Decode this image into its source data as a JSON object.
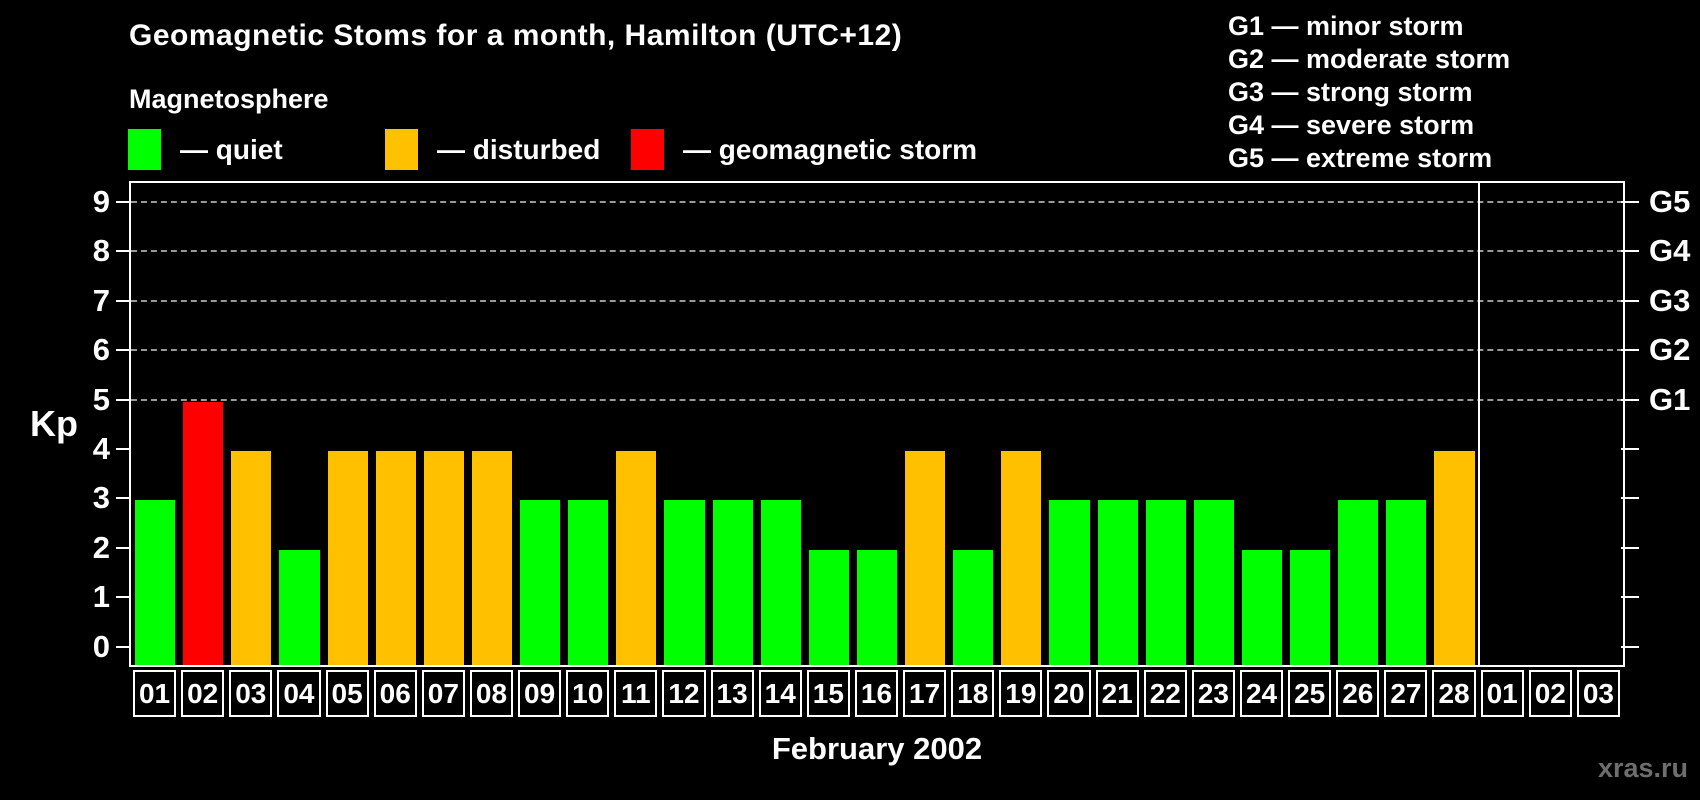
{
  "title": "Geomagnetic Stoms for a month, Hamilton (UTC+12)",
  "subtitle": "Magnetosphere",
  "legend": {
    "items": [
      {
        "type": "quiet",
        "label": "— quiet"
      },
      {
        "type": "disturbed",
        "label": "— disturbed"
      },
      {
        "type": "storm",
        "label": "— geomagnetic storm"
      }
    ]
  },
  "g_scale_legend": [
    "G1 — minor storm",
    "G2 — moderate storm",
    "G3 — strong storm",
    "G4 — severe storm",
    "G5 — extreme storm"
  ],
  "colors": {
    "quiet": "#00ff00",
    "disturbed": "#ffc000",
    "storm": "#ff0000",
    "grid": "#999999",
    "axis": "#ffffff",
    "watermark": "#6e6e6e"
  },
  "ylabel": "Kp",
  "watermark": "xras.ru",
  "chart_data": {
    "type": "bar",
    "title": "Geomagnetic Stoms for a month, Hamilton (UTC+12)",
    "xlabel": "February 2002",
    "ylabel": "Kp",
    "ylim": [
      0,
      9
    ],
    "y_ticks": [
      0,
      1,
      2,
      3,
      4,
      5,
      6,
      7,
      8,
      9
    ],
    "gridlines_at": [
      5,
      6,
      7,
      8,
      9
    ],
    "grid": "dashed, storm levels only",
    "legend_position": "top-right",
    "right_axis_labels": [
      {
        "kp": 5,
        "label": "G1"
      },
      {
        "kp": 6,
        "label": "G2"
      },
      {
        "kp": 7,
        "label": "G3"
      },
      {
        "kp": 8,
        "label": "G4"
      },
      {
        "kp": 9,
        "label": "G5"
      }
    ],
    "month_separator_after_index": 27,
    "categories": [
      "01",
      "02",
      "03",
      "04",
      "05",
      "06",
      "07",
      "08",
      "09",
      "10",
      "11",
      "12",
      "13",
      "14",
      "15",
      "16",
      "17",
      "18",
      "19",
      "20",
      "21",
      "22",
      "23",
      "24",
      "25",
      "26",
      "27",
      "28",
      "01",
      "02",
      "03"
    ],
    "series": [
      {
        "name": "Kp index",
        "values": [
          3,
          5,
          4,
          2,
          4,
          4,
          4,
          4,
          3,
          3,
          4,
          3,
          3,
          3,
          2,
          2,
          4,
          2,
          4,
          3,
          3,
          3,
          3,
          2,
          2,
          3,
          3,
          4,
          null,
          null,
          null
        ],
        "types": [
          "quiet",
          "storm",
          "disturbed",
          "quiet",
          "disturbed",
          "disturbed",
          "disturbed",
          "disturbed",
          "quiet",
          "quiet",
          "disturbed",
          "quiet",
          "quiet",
          "quiet",
          "quiet",
          "quiet",
          "disturbed",
          "quiet",
          "disturbed",
          "quiet",
          "quiet",
          "quiet",
          "quiet",
          "quiet",
          "quiet",
          "quiet",
          "quiet",
          "disturbed",
          null,
          null,
          null
        ]
      }
    ]
  }
}
